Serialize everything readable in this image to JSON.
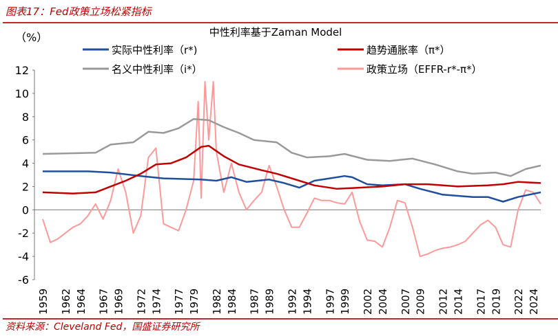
{
  "header": {
    "figure_title": "图表17：Fed政策立场松紧指标"
  },
  "footer": {
    "source": "资料来源：Cleveland Fed，国盛证券研究所"
  },
  "chart_data": {
    "type": "line",
    "title": "中性利率基于Zaman Model",
    "ylabel": "（%）",
    "ylim": [
      -6,
      12
    ],
    "yticks": [
      -6,
      -4,
      -2,
      0,
      2,
      4,
      6,
      8,
      10,
      12
    ],
    "xlim": [
      1959,
      2025
    ],
    "xticks": [
      "1959",
      "1962",
      "1964",
      "1967",
      "1969",
      "1972",
      "1974",
      "1977",
      "1979",
      "1982",
      "1984",
      "1987",
      "1989",
      "1992",
      "1994",
      "1997",
      "1999",
      "2002",
      "2004",
      "2007",
      "2009",
      "2012",
      "2014",
      "2017",
      "2019",
      "2022",
      "2024"
    ],
    "legend": "top",
    "grid": false,
    "series": [
      {
        "name": "实际中性利率（r*)",
        "color": "#1f4e9c",
        "points": [
          [
            1959,
            3.3
          ],
          [
            1965,
            3.3
          ],
          [
            1968,
            3.2
          ],
          [
            1972,
            2.9
          ],
          [
            1975,
            2.7
          ],
          [
            1980,
            2.6
          ],
          [
            1982,
            2.5
          ],
          [
            1984,
            2.8
          ],
          [
            1986,
            2.4
          ],
          [
            1989,
            2.6
          ],
          [
            1991,
            2.3
          ],
          [
            1993,
            1.9
          ],
          [
            1995,
            2.5
          ],
          [
            1997,
            2.7
          ],
          [
            1999,
            2.9
          ],
          [
            2000,
            2.8
          ],
          [
            2002,
            2.2
          ],
          [
            2004,
            2.1
          ],
          [
            2007,
            2.2
          ],
          [
            2009,
            1.8
          ],
          [
            2012,
            1.3
          ],
          [
            2014,
            1.2
          ],
          [
            2016,
            1.1
          ],
          [
            2018,
            1.1
          ],
          [
            2020,
            0.7
          ],
          [
            2022,
            1.1
          ],
          [
            2025,
            1.5
          ]
        ]
      },
      {
        "name": "趋势通胀率（π*）",
        "color": "#c00000",
        "points": [
          [
            1959,
            1.5
          ],
          [
            1963,
            1.4
          ],
          [
            1966,
            1.5
          ],
          [
            1968,
            2.0
          ],
          [
            1970,
            2.5
          ],
          [
            1972,
            3.1
          ],
          [
            1974,
            3.9
          ],
          [
            1976,
            4.0
          ],
          [
            1978,
            4.5
          ],
          [
            1980,
            5.4
          ],
          [
            1981,
            5.5
          ],
          [
            1983,
            4.6
          ],
          [
            1985,
            3.9
          ],
          [
            1988,
            3.4
          ],
          [
            1990,
            3.1
          ],
          [
            1993,
            2.5
          ],
          [
            1995,
            2.1
          ],
          [
            1998,
            1.8
          ],
          [
            2001,
            1.9
          ],
          [
            2004,
            2.0
          ],
          [
            2007,
            2.2
          ],
          [
            2010,
            2.2
          ],
          [
            2014,
            2.0
          ],
          [
            2018,
            2.1
          ],
          [
            2020,
            2.2
          ],
          [
            2022,
            2.4
          ],
          [
            2025,
            2.3
          ]
        ]
      },
      {
        "name": "名义中性利率（i*）",
        "color": "#999999",
        "points": [
          [
            1959,
            4.8
          ],
          [
            1966,
            4.9
          ],
          [
            1968,
            5.6
          ],
          [
            1971,
            5.8
          ],
          [
            1973,
            6.7
          ],
          [
            1975,
            6.6
          ],
          [
            1977,
            7.0
          ],
          [
            1979,
            7.8
          ],
          [
            1981,
            7.7
          ],
          [
            1983,
            7.1
          ],
          [
            1985,
            6.6
          ],
          [
            1987,
            6.0
          ],
          [
            1990,
            5.8
          ],
          [
            1992,
            4.9
          ],
          [
            1994,
            4.5
          ],
          [
            1997,
            4.6
          ],
          [
            1999,
            4.8
          ],
          [
            2002,
            4.3
          ],
          [
            2005,
            4.2
          ],
          [
            2008,
            4.4
          ],
          [
            2011,
            3.9
          ],
          [
            2014,
            3.3
          ],
          [
            2016,
            3.1
          ],
          [
            2019,
            3.2
          ],
          [
            2021,
            2.9
          ],
          [
            2023,
            3.5
          ],
          [
            2025,
            3.8
          ]
        ]
      },
      {
        "name": "政策立场（EFFR-r*-π*）",
        "color": "#ff9999",
        "points": [
          [
            1959,
            -0.8
          ],
          [
            1960,
            -2.8
          ],
          [
            1961,
            -2.5
          ],
          [
            1962,
            -2
          ],
          [
            1963,
            -1.5
          ],
          [
            1964,
            -1.2
          ],
          [
            1965,
            -0.5
          ],
          [
            1966,
            0.5
          ],
          [
            1967,
            -0.8
          ],
          [
            1968,
            0.8
          ],
          [
            1969,
            3.5
          ],
          [
            1970,
            1.5
          ],
          [
            1971,
            -2
          ],
          [
            1972,
            -0.5
          ],
          [
            1973,
            4.5
          ],
          [
            1974,
            5.3
          ],
          [
            1975,
            -1.2
          ],
          [
            1976,
            -1.5
          ],
          [
            1977,
            -1.8
          ],
          [
            1978,
            0
          ],
          [
            1979,
            2.5
          ],
          [
            1979.6,
            9.3
          ],
          [
            1980,
            1
          ],
          [
            1980.5,
            11
          ],
          [
            1981,
            6
          ],
          [
            1981.6,
            11
          ],
          [
            1982,
            5
          ],
          [
            1983,
            1.5
          ],
          [
            1984,
            4
          ],
          [
            1985,
            1.5
          ],
          [
            1986,
            0
          ],
          [
            1987,
            0.8
          ],
          [
            1988,
            1.5
          ],
          [
            1989,
            3.8
          ],
          [
            1990,
            2
          ],
          [
            1991,
            0
          ],
          [
            1992,
            -1.5
          ],
          [
            1993,
            -1.5
          ],
          [
            1994,
            -0.3
          ],
          [
            1995,
            1
          ],
          [
            1996,
            0.8
          ],
          [
            1997,
            0.8
          ],
          [
            1998,
            0.6
          ],
          [
            1999,
            0.5
          ],
          [
            2000,
            1.5
          ],
          [
            2001,
            -1
          ],
          [
            2002,
            -2.6
          ],
          [
            2003,
            -2.7
          ],
          [
            2004,
            -3.2
          ],
          [
            2005,
            -1.5
          ],
          [
            2006,
            0.8
          ],
          [
            2007,
            0.6
          ],
          [
            2008,
            -1.5
          ],
          [
            2009,
            -4
          ],
          [
            2010,
            -3.8
          ],
          [
            2011,
            -3.5
          ],
          [
            2012,
            -3.3
          ],
          [
            2013,
            -3.2
          ],
          [
            2014,
            -3
          ],
          [
            2015,
            -2.7
          ],
          [
            2016,
            -2
          ],
          [
            2017,
            -1.3
          ],
          [
            2018,
            -0.9
          ],
          [
            2019,
            -1.5
          ],
          [
            2020,
            -3
          ],
          [
            2021,
            -3.2
          ],
          [
            2022,
            0
          ],
          [
            2023,
            1.7
          ],
          [
            2024,
            1.5
          ],
          [
            2025,
            0.5
          ]
        ]
      }
    ]
  }
}
